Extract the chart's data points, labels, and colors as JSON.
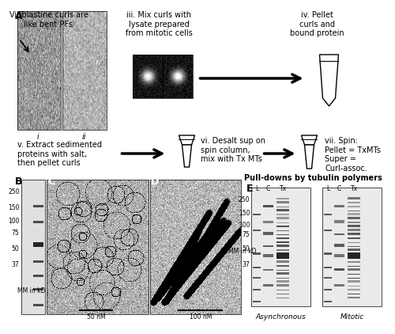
{
  "title_A": "A",
  "title_B": "B",
  "title_C": "C",
  "title_D": "D",
  "title_E": "E",
  "text_top_left": "Vinblastine curls are\nlike bent PFs",
  "text_iii": "iii. Mix curls with\nlysate prepared\nfrom mitotic cells",
  "text_iv": "iv. Pellet\ncurls and\nbound protein",
  "text_v": "v. Extract sedimented\nproteins with salt,\nthen pellet curls",
  "text_vi": "vi. Desalt sup on\nspin column,\nmix with Tx MTs",
  "text_vii": "vii. Spin:\nPellet = TxMTs\nSuper =\nCurl-assoc.",
  "label_i": "i",
  "label_ii": "ii",
  "pull_downs_title": "Pull-downs by tubulin polymers",
  "label_async": "Asynchronous",
  "label_mitotic": "Mitotic",
  "mm_label": "MM in kD",
  "scale_50nm": "50 nM",
  "scale_100nm": "100 nM",
  "mw_markers_B": [
    250,
    150,
    100,
    75,
    50,
    37
  ],
  "mw_markers_E": [
    250,
    150,
    100,
    75,
    50,
    37
  ],
  "bg_color": "#ffffff",
  "text_color": "#000000",
  "fig_width": 4.74,
  "fig_height": 4.03
}
